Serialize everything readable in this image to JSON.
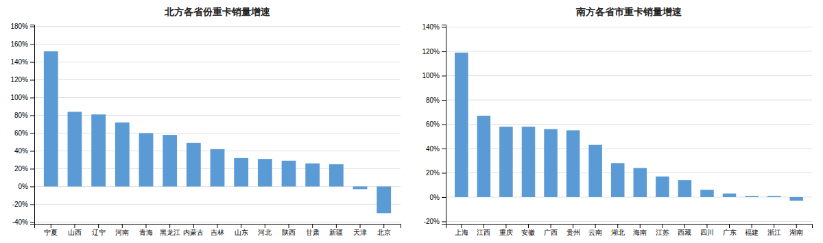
{
  "chart_data": [
    {
      "type": "bar",
      "title": "北方各省份重卡销量增速",
      "categories": [
        "宁夏",
        "山西",
        "辽宁",
        "河南",
        "青海",
        "黑龙江",
        "内蒙古",
        "吉林",
        "山东",
        "河北",
        "陕西",
        "甘肃",
        "新疆",
        "天津",
        "北京"
      ],
      "values": [
        1.52,
        0.84,
        0.81,
        0.72,
        0.6,
        0.58,
        0.49,
        0.42,
        0.32,
        0.31,
        0.29,
        0.26,
        0.25,
        -0.03,
        -0.3
      ],
      "color": "#5B9BD5",
      "ylim": [
        -0.42,
        1.82
      ],
      "yticks": [
        {
          "value": -0.4,
          "label": "-40%"
        },
        {
          "value": -0.2,
          "label": "-20%"
        },
        {
          "value": 0.0,
          "label": "0%"
        },
        {
          "value": 0.2,
          "label": "20%"
        },
        {
          "value": 0.4,
          "label": "40%"
        },
        {
          "value": 0.6,
          "label": "60%"
        },
        {
          "value": 0.8,
          "label": "80%"
        },
        {
          "value": 1.0,
          "label": "100%"
        },
        {
          "value": 1.2,
          "label": "120%"
        },
        {
          "value": 1.4,
          "label": "140%"
        },
        {
          "value": 1.6,
          "label": "160%"
        },
        {
          "value": 1.8,
          "label": "180%"
        }
      ],
      "grid": true
    },
    {
      "type": "bar",
      "title": "南方各省市重卡销量增速",
      "categories": [
        "上海",
        "江西",
        "重庆",
        "安徽",
        "广西",
        "贵州",
        "云南",
        "湖北",
        "海南",
        "江苏",
        "西藏",
        "四川",
        "广东",
        "福建",
        "浙江",
        "湖南"
      ],
      "values": [
        1.19,
        0.67,
        0.58,
        0.58,
        0.56,
        0.55,
        0.43,
        0.28,
        0.24,
        0.17,
        0.14,
        0.06,
        0.03,
        0.01,
        0.01,
        -0.03
      ],
      "color": "#5B9BD5",
      "ylim": [
        -0.22,
        1.42
      ],
      "yticks": [
        {
          "value": -0.2,
          "label": "-20%"
        },
        {
          "value": 0.0,
          "label": "0%"
        },
        {
          "value": 0.2,
          "label": "20%"
        },
        {
          "value": 0.4,
          "label": "40%"
        },
        {
          "value": 0.6,
          "label": "60%"
        },
        {
          "value": 0.8,
          "label": "80%"
        },
        {
          "value": 1.0,
          "label": "100%"
        },
        {
          "value": 1.2,
          "label": "120%"
        },
        {
          "value": 1.4,
          "label": "140%"
        }
      ],
      "grid": true
    }
  ]
}
